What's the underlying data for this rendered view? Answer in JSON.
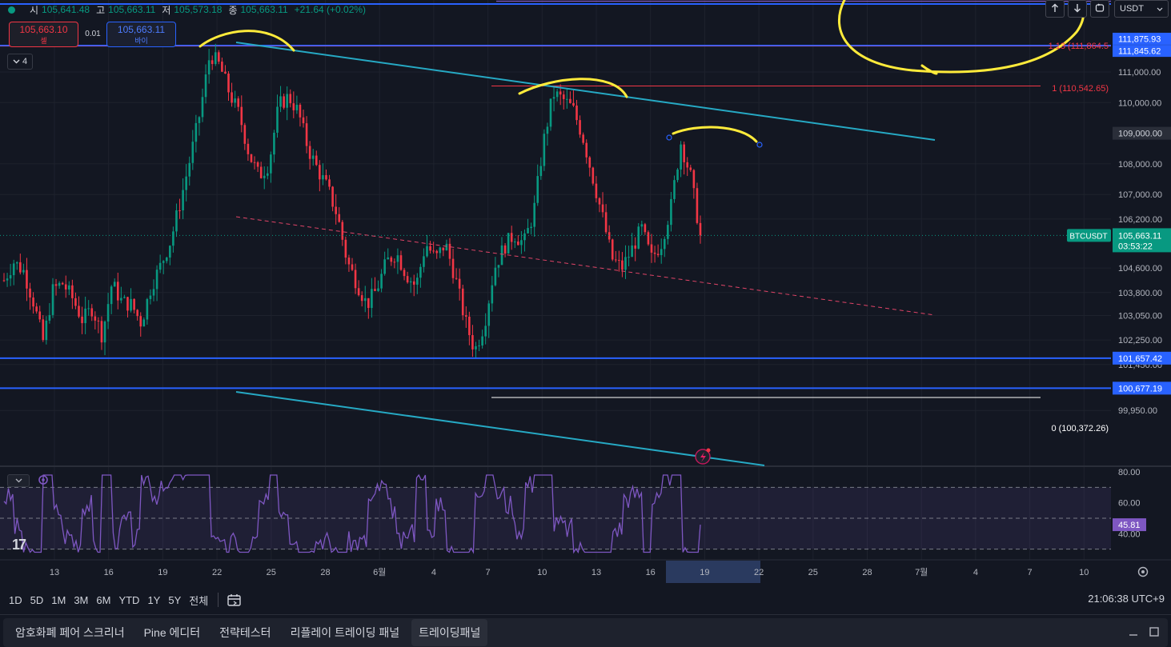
{
  "legend": {
    "open_label": "시",
    "open": "105,641.48",
    "high_label": "고",
    "high": "105,663.11",
    "low_label": "저",
    "low": "105,573.18",
    "close_label": "종",
    "close": "105,663.11",
    "change": "+21.64 (+0.02%)"
  },
  "trade": {
    "sell_price": "105,663.10",
    "sell_label": "셀",
    "buy_price": "105,663.11",
    "buy_label": "바이",
    "spread": "0.01"
  },
  "collapse": {
    "count": "4"
  },
  "top_controls": {
    "currency": "USDT",
    "up_icon": "arrow-up-icon",
    "down_icon": "arrow-down-icon",
    "reset_icon": "reset-icon"
  },
  "colors": {
    "bg": "#131722",
    "up": "#089981",
    "down": "#f23645",
    "blue_line": "#2962ff",
    "trend": "#26a9c4",
    "rsi": "#7e57c2",
    "annotation": "#ffeb3b",
    "fib_red": "#f23645"
  },
  "chart_data": {
    "type": "candlestick",
    "symbol": "BTCUSDT",
    "countdown": "03:53:22",
    "last_price": 105663.11,
    "last_price_label": "105,663.11",
    "x_dates": [
      "13",
      "16",
      "19",
      "22",
      "25",
      "28",
      "6월",
      "4",
      "7",
      "10",
      "13",
      "16",
      "19",
      "22",
      "25",
      "28",
      "7월",
      "4",
      "7",
      "10"
    ],
    "price_ticks": [
      "111,000.00",
      "110,000.00",
      "108,000.00",
      "107,000.00",
      "106,200.00",
      "104,600.00",
      "103,800.00",
      "103,050.00",
      "102,250.00",
      "101,450.00",
      "99,950.00"
    ],
    "price_tick_values": [
      111000,
      110000,
      108000,
      107000,
      106200,
      104600,
      103800,
      103050,
      102250,
      101450,
      99950
    ],
    "horizontal_levels": [
      {
        "value": 111875.93,
        "label": "111,875.93"
      },
      {
        "value": 111845.62,
        "label": "111,845.62"
      },
      {
        "value": 101657.42,
        "label": "101,657.42"
      },
      {
        "value": 100677.19,
        "label": "100,677.19"
      },
      {
        "value": 109000.0,
        "label": "109,000.00"
      }
    ],
    "fib_levels": [
      {
        "label": "1.13 (111,864.5",
        "value": 111864.5
      },
      {
        "label": "1 (110,542.65)",
        "value": 110542.65
      },
      {
        "label": "0 (100,372.26)",
        "value": 100372.26
      }
    ],
    "close_path": [
      104200,
      104800,
      104500,
      103500,
      102200,
      103900,
      104100,
      103600,
      102900,
      103300,
      102400,
      104100,
      103500,
      103400,
      102800,
      104000,
      104700,
      105500,
      106800,
      108200,
      109700,
      111600,
      111200,
      110300,
      109600,
      108300,
      107600,
      108000,
      109900,
      110200,
      109700,
      108500,
      107800,
      107200,
      106300,
      104800,
      104100,
      103400,
      103900,
      104800,
      105100,
      104400,
      104000,
      105400,
      104900,
      105400,
      104300,
      102900,
      101900,
      102800,
      104600,
      105300,
      105700,
      105400,
      106400,
      108700,
      110300,
      110100,
      109800,
      108900,
      107600,
      106300,
      104900,
      104600,
      105200,
      105900,
      104900,
      105400,
      106600,
      108700,
      107600,
      105663.11
    ],
    "rsi": {
      "current": "45.81",
      "ticks": [
        "80.00",
        "60.00",
        "40.00"
      ],
      "tick_values": [
        80,
        60,
        40
      ],
      "upper": 70,
      "lower": 30
    }
  },
  "range_bar": {
    "items": [
      "1D",
      "5D",
      "1M",
      "3M",
      "6M",
      "YTD",
      "1Y",
      "5Y",
      "전체"
    ],
    "clock": "21:06:38 UTC+9"
  },
  "bottom_tabs": [
    "암호화폐 페어 스크리너",
    "Pine 에디터",
    "전략테스터",
    "리플레이 트레이딩 패널",
    "트레이딩패널"
  ],
  "bottom_controls": {
    "minimize_icon": "minimize-icon",
    "maximize_icon": "maximize-icon"
  },
  "logo_text": "17"
}
